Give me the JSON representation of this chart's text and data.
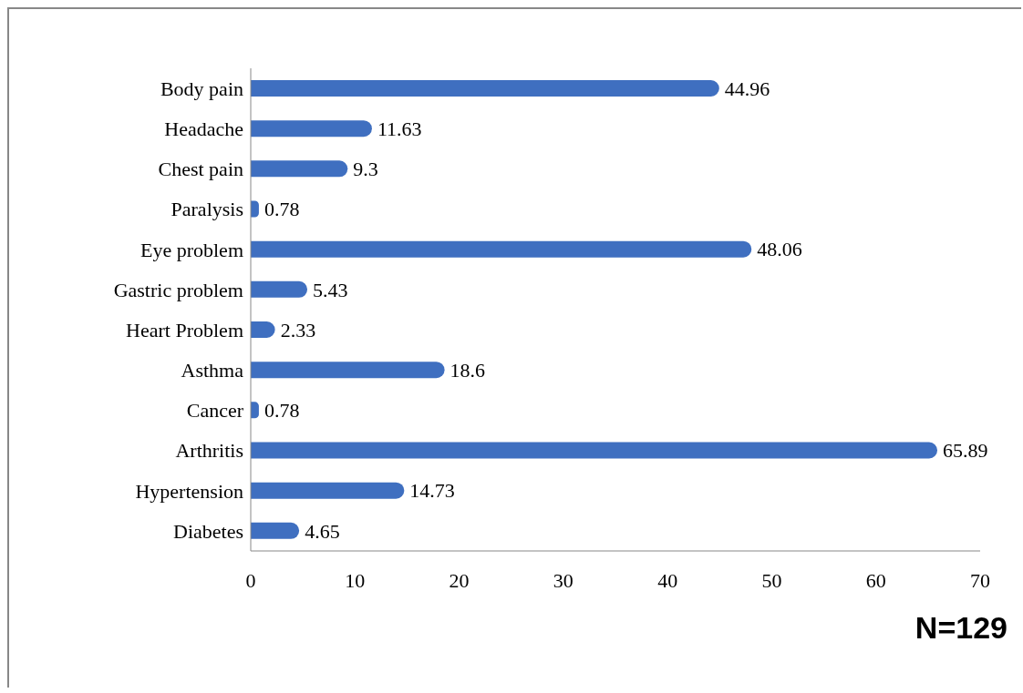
{
  "chart_data": {
    "type": "bar",
    "orientation": "horizontal",
    "categories": [
      "Body pain",
      "Headache",
      "Chest pain",
      "Paralysis",
      "Eye problem",
      "Gastric problem",
      "Heart  Problem",
      "Asthma",
      "Cancer",
      "Arthritis",
      "Hypertension",
      "Diabetes"
    ],
    "values": [
      44.96,
      11.63,
      9.3,
      0.78,
      48.06,
      5.43,
      2.33,
      18.6,
      0.78,
      65.89,
      14.73,
      4.65
    ],
    "color": "#3f6fc0",
    "xlim": [
      0,
      70
    ],
    "xticks": [
      0,
      10,
      20,
      30,
      40,
      50,
      60,
      70
    ],
    "data_labels": true,
    "annotations": [
      "N=129"
    ]
  }
}
